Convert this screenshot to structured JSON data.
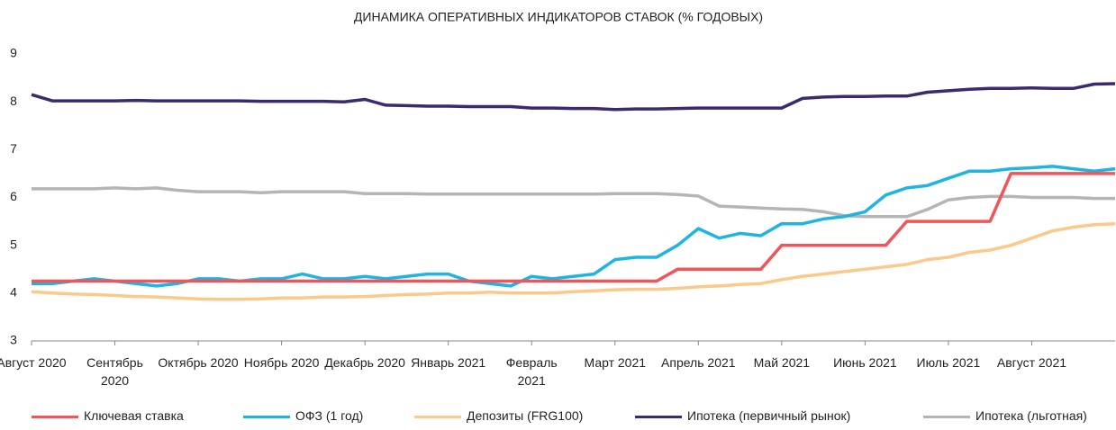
{
  "chart_data": {
    "type": "line",
    "title": "ДИНАМИКА ОПЕРАТИВНЫХ ИНДИКАТОРОВ СТАВОК (% ГОДОВЫХ)",
    "x": [
      0,
      0.25,
      0.5,
      0.75,
      1,
      1.25,
      1.5,
      1.75,
      2,
      2.25,
      2.5,
      2.75,
      3,
      3.25,
      3.5,
      3.75,
      4,
      4.25,
      4.5,
      4.75,
      5,
      5.25,
      5.5,
      5.75,
      6,
      6.25,
      6.5,
      6.75,
      7,
      7.25,
      7.5,
      7.75,
      8,
      8.25,
      8.5,
      8.75,
      9,
      9.25,
      9.5,
      9.75,
      10,
      10.25,
      10.5,
      10.75,
      11,
      11.25,
      11.5,
      11.75,
      12,
      12.25,
      12.5,
      12.75,
      13
    ],
    "xlim": [
      0,
      13
    ],
    "xticks": [
      {
        "value": 0,
        "label": "Август 2020"
      },
      {
        "value": 1,
        "label": "Сентябрь 2020"
      },
      {
        "value": 2,
        "label": "Октябрь 2020"
      },
      {
        "value": 3,
        "label": "Ноябрь 2020"
      },
      {
        "value": 4,
        "label": "Декабрь 2020"
      },
      {
        "value": 5,
        "label": "Январь 2021"
      },
      {
        "value": 6,
        "label": "Февраль 2021"
      },
      {
        "value": 7,
        "label": "Март 2021"
      },
      {
        "value": 8,
        "label": "Апрель 2021"
      },
      {
        "value": 9,
        "label": "Май 2021"
      },
      {
        "value": 10,
        "label": "Июнь 2021"
      },
      {
        "value": 11,
        "label": "Июль 2021"
      },
      {
        "value": 12,
        "label": "Август 2021"
      }
    ],
    "ylim": [
      3,
      9
    ],
    "yticks": [
      3,
      4,
      5,
      6,
      7,
      8,
      9
    ],
    "grid": false,
    "legend": "bottom",
    "series": [
      {
        "name": "Ключевая ставка",
        "color": "#f0555a",
        "values": [
          4.25,
          4.25,
          4.25,
          4.25,
          4.25,
          4.25,
          4.25,
          4.25,
          4.25,
          4.25,
          4.25,
          4.25,
          4.25,
          4.25,
          4.25,
          4.25,
          4.25,
          4.25,
          4.25,
          4.25,
          4.25,
          4.25,
          4.25,
          4.25,
          4.25,
          4.25,
          4.25,
          4.25,
          4.25,
          4.25,
          4.25,
          4.5,
          4.5,
          4.5,
          4.5,
          4.5,
          5,
          5,
          5,
          5,
          5,
          5,
          5.5,
          5.5,
          5.5,
          5.5,
          5.5,
          6.5,
          6.5,
          6.5,
          6.5,
          6.5,
          6.5
        ]
      },
      {
        "name": "ОФЗ (1 год)",
        "color": "#1fb4e2",
        "values": [
          4.2,
          4.2,
          4.25,
          4.3,
          4.25,
          4.2,
          4.15,
          4.2,
          4.3,
          4.3,
          4.25,
          4.3,
          4.3,
          4.4,
          4.3,
          4.3,
          4.35,
          4.3,
          4.35,
          4.4,
          4.4,
          4.25,
          4.2,
          4.15,
          4.35,
          4.3,
          4.35,
          4.4,
          4.7,
          4.75,
          4.75,
          5,
          5.35,
          5.15,
          5.25,
          5.2,
          5.45,
          5.45,
          5.55,
          5.6,
          5.7,
          6.05,
          6.2,
          6.25,
          6.4,
          6.55,
          6.55,
          6.6,
          6.62,
          6.65,
          6.6,
          6.55,
          6.6
        ]
      },
      {
        "name": "Депозиты (FRG100)",
        "color": "#fbc98a",
        "values": [
          4.03,
          4,
          3.98,
          3.97,
          3.95,
          3.93,
          3.92,
          3.9,
          3.88,
          3.87,
          3.87,
          3.88,
          3.9,
          3.9,
          3.92,
          3.92,
          3.93,
          3.95,
          3.97,
          3.98,
          4,
          4,
          4.02,
          4,
          4,
          4,
          4.03,
          4.05,
          4.07,
          4.08,
          4.08,
          4.1,
          4.13,
          4.15,
          4.18,
          4.2,
          4.28,
          4.35,
          4.4,
          4.45,
          4.5,
          4.55,
          4.6,
          4.7,
          4.75,
          4.85,
          4.9,
          5,
          5.15,
          5.3,
          5.38,
          5.43,
          5.45
        ]
      },
      {
        "name": "Ипотека (первичный рынок)",
        "color": "#3b2a6e",
        "values": [
          8.15,
          8.02,
          8.02,
          8.02,
          8.02,
          8.03,
          8.02,
          8.02,
          8.02,
          8.02,
          8.02,
          8.01,
          8.01,
          8.01,
          8.01,
          8,
          8.05,
          7.93,
          7.92,
          7.91,
          7.91,
          7.9,
          7.9,
          7.9,
          7.87,
          7.87,
          7.86,
          7.86,
          7.84,
          7.85,
          7.85,
          7.86,
          7.87,
          7.87,
          7.87,
          7.87,
          7.87,
          8.07,
          8.1,
          8.11,
          8.11,
          8.12,
          8.12,
          8.2,
          8.23,
          8.26,
          8.28,
          8.28,
          8.29,
          8.28,
          8.28,
          8.37,
          8.38
        ]
      },
      {
        "name": "Ипотека (льготная)",
        "color": "#b5b5b5",
        "values": [
          6.18,
          6.18,
          6.18,
          6.18,
          6.2,
          6.18,
          6.2,
          6.15,
          6.12,
          6.12,
          6.12,
          6.1,
          6.12,
          6.12,
          6.12,
          6.12,
          6.08,
          6.08,
          6.08,
          6.07,
          6.07,
          6.07,
          6.07,
          6.07,
          6.07,
          6.07,
          6.07,
          6.07,
          6.08,
          6.08,
          6.08,
          6.06,
          6.03,
          5.82,
          5.8,
          5.78,
          5.76,
          5.75,
          5.7,
          5.62,
          5.6,
          5.6,
          5.6,
          5.75,
          5.95,
          6,
          6.02,
          6.02,
          6,
          6,
          6,
          5.98,
          5.98
        ]
      }
    ]
  }
}
